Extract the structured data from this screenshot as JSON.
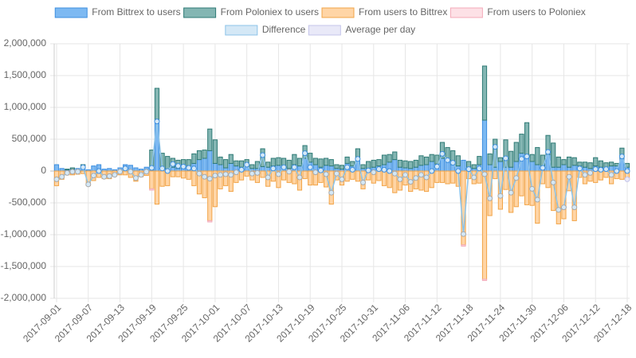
{
  "chart_data": {
    "type": "bar",
    "categories": [
      "2017-09-01",
      null,
      null,
      null,
      null,
      null,
      "2017-09-07",
      null,
      null,
      null,
      null,
      null,
      "2017-09-13",
      null,
      null,
      null,
      null,
      null,
      "2017-09-19",
      null,
      null,
      null,
      null,
      null,
      "2017-09-25",
      null,
      null,
      null,
      null,
      null,
      "2017-10-01",
      null,
      null,
      null,
      null,
      null,
      "2017-10-07",
      null,
      null,
      null,
      null,
      null,
      "2017-10-13",
      null,
      null,
      null,
      null,
      null,
      "2017-10-19",
      null,
      null,
      null,
      null,
      null,
      "2017-10-25",
      null,
      null,
      null,
      null,
      null,
      "2017-10-31",
      null,
      null,
      null,
      null,
      null,
      "2017-11-06",
      null,
      null,
      null,
      null,
      null,
      "2017-11-12",
      null,
      null,
      null,
      null,
      null,
      "2017-11-18",
      null,
      null,
      null,
      null,
      null,
      "2017-11-24",
      null,
      null,
      null,
      null,
      null,
      "2017-11-30",
      null,
      null,
      null,
      null,
      null,
      "2017-12-06",
      null,
      null,
      null,
      null,
      null,
      "2017-12-12",
      null,
      null,
      null,
      null,
      null,
      "2017-12-18"
    ],
    "series": [
      {
        "name": "From Bittrex to users",
        "type": "bar",
        "color": "#7db9f2",
        "border": "#3e8fdf",
        "values": [
          100000,
          40000,
          20000,
          30000,
          40000,
          90000,
          20000,
          80000,
          100000,
          30000,
          40000,
          20000,
          50000,
          100000,
          90000,
          50000,
          30000,
          60000,
          20000,
          780000,
          40000,
          30000,
          60000,
          40000,
          50000,
          50000,
          120000,
          180000,
          200000,
          320000,
          120000,
          100000,
          50000,
          120000,
          80000,
          60000,
          70000,
          40000,
          40000,
          70000,
          60000,
          80000,
          90000,
          60000,
          40000,
          100000,
          80000,
          200000,
          140000,
          100000,
          60000,
          90000,
          80000,
          40000,
          30000,
          120000,
          80000,
          200000,
          40000,
          40000,
          60000,
          80000,
          100000,
          140000,
          180000,
          60000,
          50000,
          40000,
          60000,
          90000,
          100000,
          150000,
          110000,
          200000,
          150000,
          100000,
          80000,
          170000,
          60000,
          40000,
          100000,
          800000,
          100000,
          60000,
          150000,
          60000,
          60000,
          150000,
          280000,
          220000,
          150000,
          100000,
          50000,
          260000,
          60000,
          60000,
          100000,
          60000,
          90000,
          80000,
          60000,
          40000,
          80000,
          60000,
          50000,
          80000,
          80000,
          200000,
          60000
        ]
      },
      {
        "name": "From Poloniex to users",
        "type": "bar",
        "color": "#84b6b3",
        "border": "#2e7a75",
        "values": [
          0,
          0,
          10000,
          20000,
          0,
          10000,
          0,
          0,
          0,
          0,
          0,
          0,
          0,
          0,
          0,
          0,
          0,
          0,
          310000,
          520000,
          240000,
          200000,
          140000,
          130000,
          130000,
          130000,
          150000,
          140000,
          130000,
          340000,
          370000,
          120000,
          130000,
          140000,
          80000,
          100000,
          110000,
          60000,
          110000,
          280000,
          80000,
          120000,
          120000,
          140000,
          130000,
          160000,
          120000,
          200000,
          140000,
          100000,
          130000,
          110000,
          100000,
          60000,
          60000,
          100000,
          70000,
          150000,
          60000,
          110000,
          110000,
          100000,
          150000,
          120000,
          120000,
          110000,
          110000,
          110000,
          110000,
          150000,
          120000,
          110000,
          140000,
          250000,
          220000,
          220000,
          160000,
          0,
          90000,
          60000,
          130000,
          850000,
          170000,
          440000,
          60000,
          430000,
          250000,
          300000,
          300000,
          540000,
          110000,
          270000,
          200000,
          300000,
          380000,
          160000,
          80000,
          160000,
          120000,
          60000,
          80000,
          90000,
          130000,
          100000,
          80000,
          60000,
          40000,
          160000,
          60000
        ]
      },
      {
        "name": "From users to Bittrex",
        "type": "bar",
        "color": "#ffd5a6",
        "border": "#f2a447",
        "values": [
          -230000,
          -130000,
          -60000,
          -60000,
          -50000,
          -40000,
          -230000,
          -150000,
          -100000,
          -120000,
          -120000,
          -80000,
          -60000,
          -60000,
          -100000,
          -160000,
          -90000,
          -70000,
          -280000,
          -520000,
          -240000,
          -230000,
          -90000,
          -90000,
          -110000,
          -130000,
          -230000,
          -360000,
          -420000,
          -780000,
          -560000,
          -280000,
          -230000,
          -320000,
          -180000,
          -140000,
          -80000,
          -140000,
          -180000,
          -100000,
          -240000,
          -160000,
          -260000,
          -140000,
          -180000,
          -200000,
          -300000,
          -120000,
          -220000,
          -220000,
          -180000,
          -250000,
          -520000,
          -140000,
          -220000,
          -160000,
          -130000,
          -160000,
          -280000,
          -140000,
          -190000,
          -150000,
          -230000,
          -260000,
          -340000,
          -300000,
          -220000,
          -320000,
          -280000,
          -300000,
          -320000,
          -260000,
          -180000,
          -180000,
          -200000,
          -190000,
          -240000,
          -1160000,
          -120000,
          -200000,
          -190000,
          -1700000,
          -700000,
          -120000,
          -600000,
          -290000,
          -650000,
          -560000,
          -390000,
          -530000,
          -540000,
          -820000,
          -200000,
          -260000,
          -620000,
          -830000,
          -750000,
          -310000,
          -780000,
          -100000,
          -200000,
          -160000,
          -180000,
          -140000,
          -100000,
          -200000,
          -120000,
          -130000,
          -120000
        ]
      },
      {
        "name": "From users to Poloniex",
        "type": "bar",
        "color": "#fde1e6",
        "border": "#f3a9b8",
        "values": [
          0,
          0,
          0,
          0,
          0,
          0,
          0,
          0,
          0,
          0,
          0,
          0,
          0,
          0,
          0,
          0,
          0,
          0,
          -20000,
          0,
          0,
          0,
          0,
          0,
          0,
          0,
          0,
          0,
          0,
          -20000,
          0,
          0,
          0,
          0,
          0,
          0,
          0,
          0,
          0,
          0,
          0,
          0,
          0,
          0,
          0,
          0,
          0,
          0,
          0,
          0,
          0,
          0,
          0,
          0,
          0,
          0,
          0,
          0,
          0,
          0,
          0,
          0,
          0,
          0,
          0,
          0,
          0,
          0,
          0,
          0,
          0,
          0,
          0,
          0,
          0,
          0,
          0,
          -20000,
          0,
          0,
          0,
          -20000,
          0,
          0,
          0,
          0,
          0,
          0,
          0,
          0,
          0,
          0,
          0,
          0,
          0,
          0,
          0,
          0,
          0,
          0,
          0,
          0,
          0,
          0,
          0,
          0,
          0,
          0,
          0
        ]
      },
      {
        "name": "Difference",
        "type": "line",
        "color": "#d4e8f6",
        "border": "#8cc3e8",
        "point": "#3e8fdf",
        "point_negative": "#a9a9a9",
        "values": [
          -130000,
          -90000,
          -30000,
          -10000,
          -10000,
          60000,
          -210000,
          -70000,
          0,
          -90000,
          -80000,
          -60000,
          -10000,
          40000,
          -10000,
          -110000,
          -60000,
          -10000,
          50000,
          780000,
          40000,
          0,
          110000,
          80000,
          70000,
          50000,
          40000,
          -40000,
          -90000,
          -120000,
          -70000,
          -60000,
          -50000,
          -60000,
          -20000,
          20000,
          100000,
          -40000,
          -30000,
          250000,
          -100000,
          40000,
          -50000,
          60000,
          -10000,
          60000,
          -100000,
          280000,
          60000,
          -20000,
          10000,
          -50000,
          -340000,
          -40000,
          -130000,
          60000,
          20000,
          190000,
          -180000,
          10000,
          -20000,
          30000,
          20000,
          0,
          -40000,
          -130000,
          -60000,
          -170000,
          -110000,
          -60000,
          -100000,
          0,
          70000,
          270000,
          170000,
          130000,
          0,
          -990000,
          30000,
          -100000,
          40000,
          -50000,
          -430000,
          380000,
          -390000,
          200000,
          -340000,
          -110000,
          190000,
          230000,
          -280000,
          -450000,
          50000,
          300000,
          -180000,
          -610000,
          -570000,
          -90000,
          -570000,
          40000,
          -60000,
          -30000,
          30000,
          20000,
          30000,
          -60000,
          0,
          230000,
          0
        ]
      },
      {
        "name": "Average per day",
        "type": "line",
        "color": "#e9e9f8",
        "border": "#c5c5ea",
        "point": "#c5c5ea",
        "point_negative": "#c5c5ea",
        "values": [
          null,
          null,
          null,
          null,
          null,
          null,
          null,
          null,
          null,
          null,
          null,
          null,
          null,
          null,
          null,
          null,
          null,
          null,
          null,
          null,
          null,
          null,
          null,
          null,
          null,
          null,
          null,
          null,
          null,
          null,
          null,
          null,
          null,
          null,
          null,
          null,
          null,
          null,
          null,
          null,
          null,
          null,
          null,
          null,
          null,
          null,
          null,
          null,
          null,
          null,
          null,
          null,
          null,
          null,
          null,
          null,
          null,
          null,
          null,
          null,
          null,
          null,
          null,
          null,
          null,
          null,
          null,
          null,
          null,
          null,
          null,
          null,
          null,
          null,
          null,
          null,
          null,
          null,
          null,
          null,
          null,
          null,
          null,
          null,
          null,
          null,
          null,
          null,
          null,
          null,
          null,
          null,
          null,
          null,
          null,
          null,
          null,
          null,
          null,
          null,
          null,
          null,
          null,
          null,
          null,
          null,
          null,
          null,
          -130000
        ]
      }
    ],
    "ylim": [
      -2000000,
      2000000
    ],
    "yticks": [
      {
        "value": -2000000,
        "label": "-2,000,000"
      },
      {
        "value": -1500000,
        "label": "-1,500,000"
      },
      {
        "value": -1000000,
        "label": "-1,000,000"
      },
      {
        "value": -500000,
        "label": "-500,000"
      },
      0,
      {
        "value": 500000,
        "label": "500,000"
      },
      {
        "value": 1000000,
        "label": "1,000,000"
      },
      {
        "value": 1500000,
        "label": "1,500,000"
      },
      {
        "value": 2000000,
        "label": "2,000,000"
      }
    ],
    "grid": true,
    "legend": "top"
  }
}
